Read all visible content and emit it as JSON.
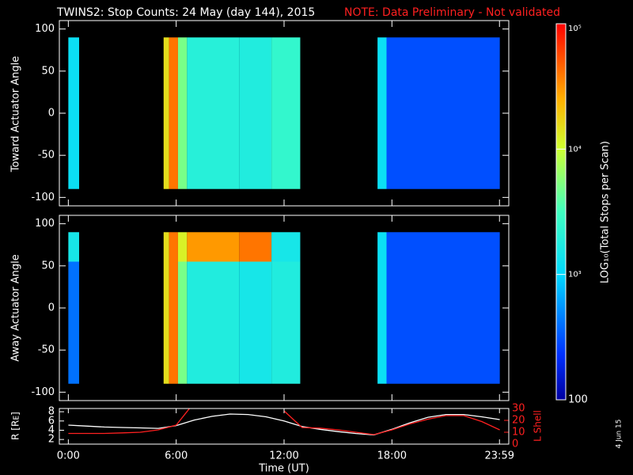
{
  "chart_data": [
    {
      "type": "heatmap",
      "title": "TWINS2: Stop Counts: 24 May (day 144), 2015",
      "note": "NOTE: Data Preliminary - Not validated",
      "ylabel": "Toward Actuator Angle",
      "xlim": [
        -0.5,
        24.5
      ],
      "ylim": [
        -110,
        110
      ],
      "yticks": [
        -100,
        -50,
        0,
        50,
        100
      ],
      "x": [
        0,
        0.6,
        5.3,
        5.6,
        6.1,
        6.6,
        9.5,
        11.3,
        12.9,
        17.2,
        17.7,
        24
      ],
      "y": [
        -90,
        90
      ],
      "values": [
        [
          1200,
          null,
          15000,
          40000,
          5000,
          2000,
          1800,
          2500,
          null,
          1200,
          300
        ]
      ],
      "zlim": [
        100,
        100000
      ],
      "log_scale": true,
      "colorbar_label": "LOG₁₀(Total Stops per Scan)",
      "zticks": [
        {
          "value": 100000,
          "label": "10⁵"
        },
        {
          "value": 10000,
          "label": "10⁴"
        },
        {
          "value": 1000,
          "label": "10³"
        },
        100
      ]
    },
    {
      "type": "heatmap",
      "ylabel": "Away Actuator Angle",
      "xlim": [
        -0.5,
        24.5
      ],
      "ylim": [
        -110,
        110
      ],
      "yticks": [
        -100,
        -50,
        0,
        50,
        100
      ],
      "x": [
        0,
        0.6,
        5.3,
        5.6,
        6.1,
        6.6,
        9.5,
        11.3,
        12.9,
        17.2,
        17.7,
        24
      ],
      "y": [
        -90,
        55,
        90
      ],
      "values": [
        [
          400,
          null,
          15000,
          40000,
          5000,
          1800,
          1500,
          1800,
          null,
          1200,
          300
        ],
        [
          1500,
          null,
          15000,
          40000,
          12000,
          30000,
          40000,
          1500,
          null,
          1200,
          300
        ]
      ]
    },
    {
      "type": "line",
      "xlabel": "Time (UT)",
      "ylabel": "R [Rᴇ]",
      "y2label": "L Shell",
      "xlim": [
        -0.5,
        24.5
      ],
      "ylim": [
        1,
        8.7
      ],
      "y2lim": [
        0,
        30
      ],
      "xticks": [
        {
          "value": 0,
          "label": "0:00"
        },
        {
          "value": 6,
          "label": "6:00"
        },
        {
          "value": 12,
          "label": "12:00"
        },
        {
          "value": 18,
          "label": "18:00"
        },
        {
          "value": 23.983,
          "label": "23:59"
        }
      ],
      "yticks": [
        2,
        4,
        6,
        8
      ],
      "y2ticks": [
        0,
        10,
        20,
        30
      ],
      "x": [
        0,
        1,
        2,
        3,
        4,
        5,
        6,
        7,
        8,
        9,
        10,
        11,
        12,
        13,
        14,
        15,
        16,
        17,
        18,
        19,
        20,
        21,
        22,
        23,
        24
      ],
      "series": [
        {
          "name": "R",
          "color": "#ffffff",
          "values": [
            5.1,
            4.9,
            4.7,
            4.6,
            4.5,
            4.4,
            5.0,
            6.2,
            7.0,
            7.5,
            7.4,
            6.9,
            6.0,
            4.8,
            4.2,
            3.7,
            3.3,
            3.0,
            4.2,
            5.6,
            6.8,
            7.4,
            7.4,
            6.9,
            6.3
          ]
        },
        {
          "name": "L Shell",
          "color": "#ff2020",
          "axis": "y2",
          "values": [
            9,
            9,
            9,
            9.5,
            10,
            12,
            16,
            35,
            null,
            null,
            null,
            null,
            28,
            14,
            13.5,
            12,
            10,
            8,
            12,
            17,
            21,
            24,
            24,
            19,
            12
          ]
        }
      ],
      "stamp": "4 Jun 15"
    }
  ]
}
